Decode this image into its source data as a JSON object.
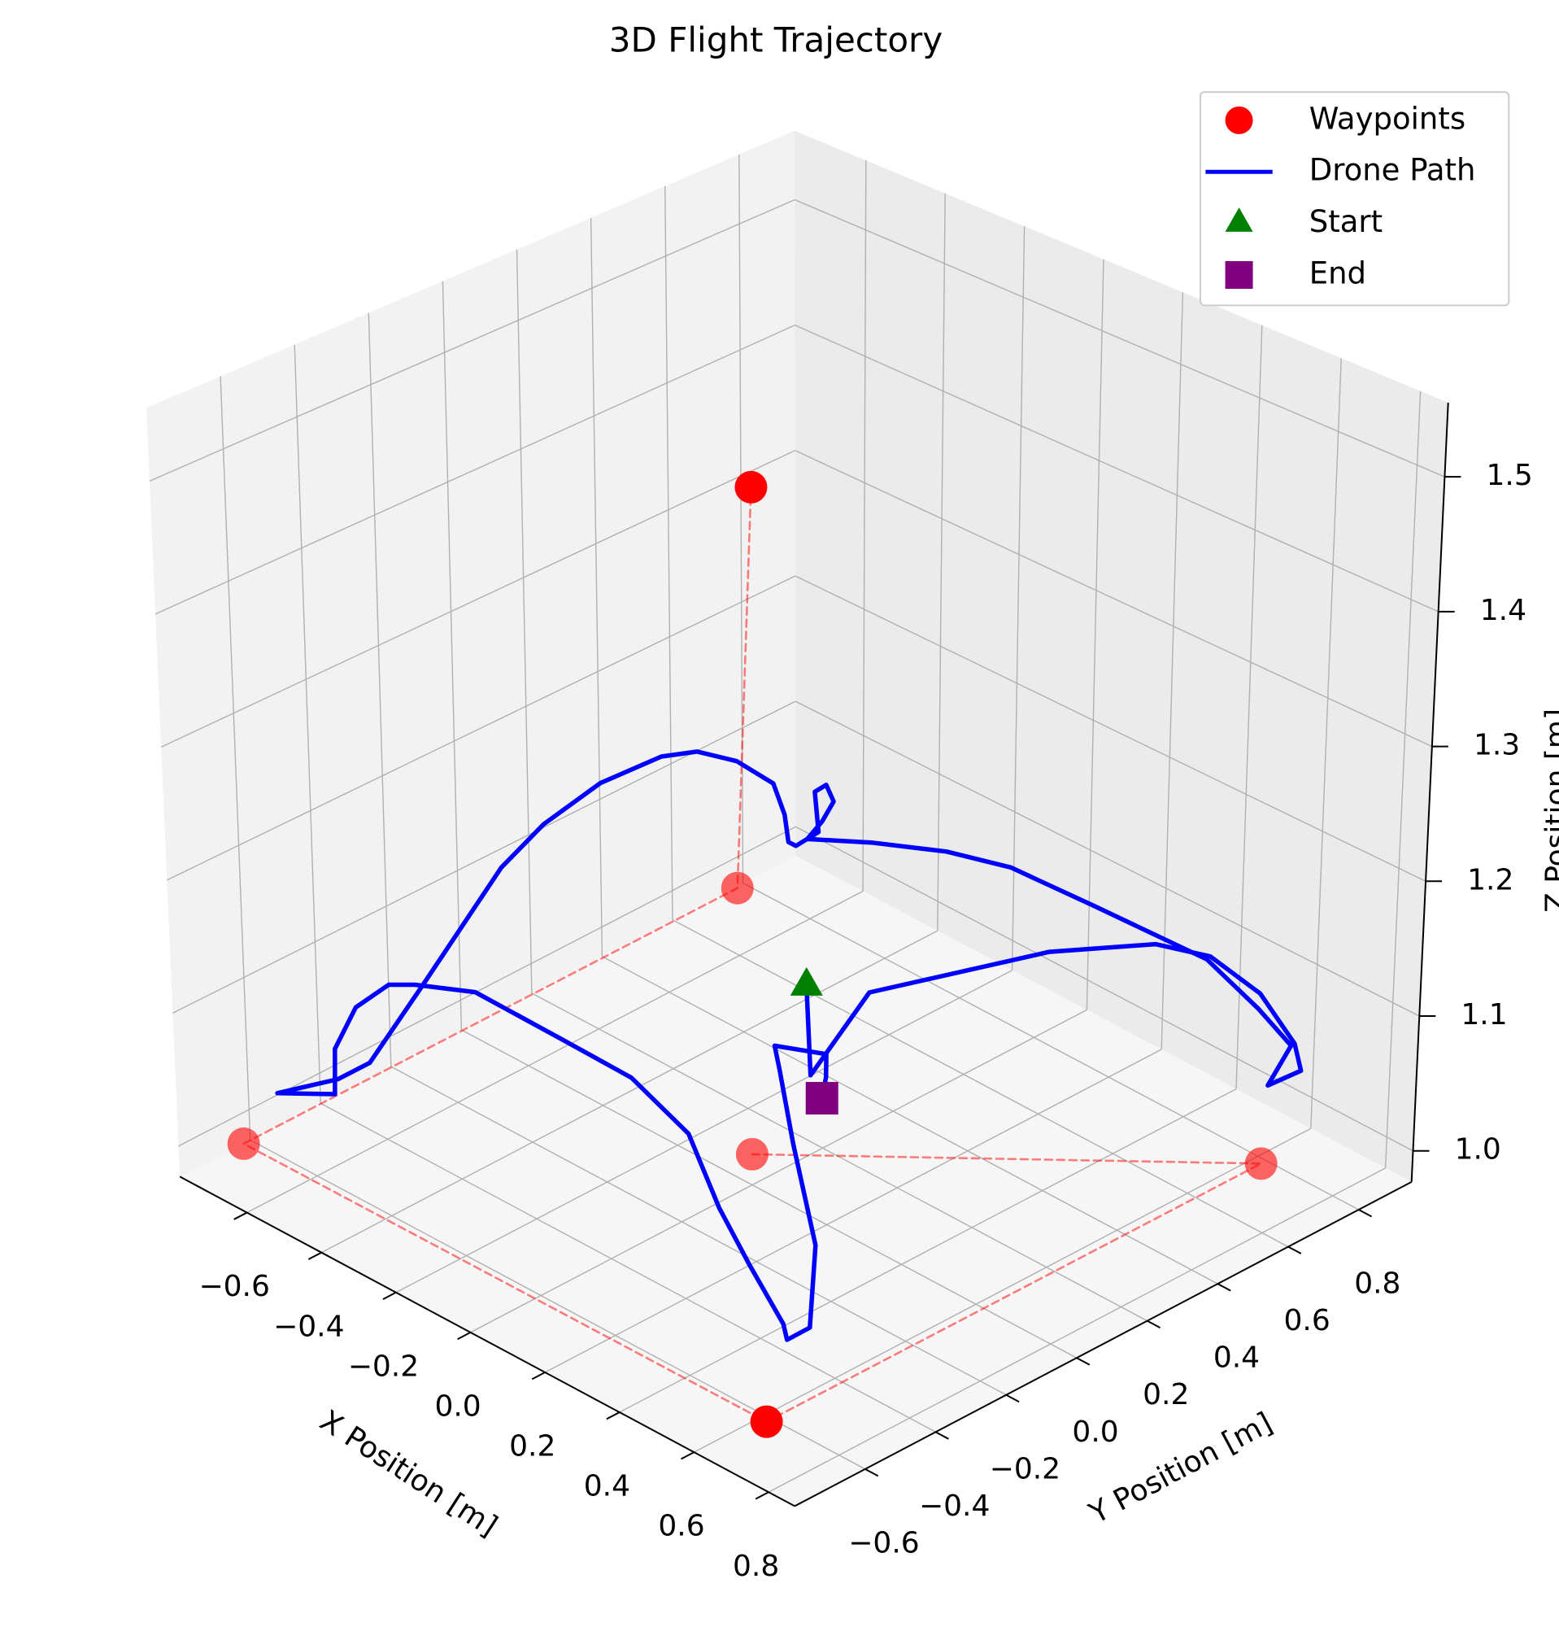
{
  "chart_data": {
    "type": "3d",
    "title": "3D Flight Trajectory",
    "xlabel": "X Position [m]",
    "ylabel": "Y Position [m]",
    "zlabel": "Z Position [m]",
    "xlim": [
      -0.78,
      0.87
    ],
    "ylim": [
      -0.8,
      0.95
    ],
    "zlim": [
      0.977,
      1.555
    ],
    "xticks": [
      {
        "value": -0.6,
        "label": "−0.6"
      },
      {
        "value": -0.4,
        "label": "−0.4"
      },
      {
        "value": -0.2,
        "label": "−0.2"
      },
      {
        "value": 0,
        "label": "0.0"
      },
      0.2,
      0.4,
      0.6,
      0.8
    ],
    "yticks": [
      {
        "value": -0.6,
        "label": "−0.6"
      },
      {
        "value": -0.4,
        "label": "−0.4"
      },
      {
        "value": -0.2,
        "label": "−0.2"
      },
      {
        "value": 0,
        "label": "0.0"
      },
      0.2,
      0.4,
      0.6,
      0.8
    ],
    "zticks": [
      {
        "value": 1.0,
        "label": "1.0"
      },
      1.1,
      1.2,
      1.3,
      1.4,
      1.5
    ],
    "grid": true,
    "legend": "upper right",
    "series": [
      {
        "name": "Waypoints",
        "kind": "scatter",
        "marker": "circle",
        "color": "red",
        "connect": "dashed",
        "x": [
          0,
          0.7,
          0.7,
          -0.7,
          -0.7,
          0
        ],
        "y": [
          0,
          0.7,
          -0.7,
          -0.7,
          0.7,
          0
        ],
        "z": [
          1.0,
          1.0,
          1.0,
          1.0,
          1.0,
          1.5
        ]
      },
      {
        "name": "Drone Path",
        "kind": "line",
        "color": "blue",
        "x": [
          0.05,
          0.08,
          0.15,
          0.35,
          0.47,
          0.54,
          0.6,
          0.64,
          0.65,
          0.61,
          0.64,
          0.57,
          0.44,
          0.15,
          -0.06,
          -0.22,
          -0.41,
          -0.57,
          -0.53,
          -0.5,
          -0.52,
          -0.55,
          -0.54,
          -0.6,
          -0.62,
          -0.63,
          -0.66,
          -0.7,
          -0.71,
          -0.71,
          -0.72,
          -0.72,
          -0.73,
          -0.73,
          -0.74,
          -0.74,
          -0.75,
          -0.74,
          -0.58,
          -0.52,
          -0.43,
          -0.36,
          -0.19,
          0.04,
          0.24,
          0.39,
          0.48,
          0.56,
          0.65,
          0.66,
          0.73,
          0.49,
          0.27,
          0.13,
          0.06,
          0.15,
          0.14,
          0.12
        ],
        "y": [
          0.1,
          0.08,
          0.17,
          0.46,
          0.63,
          0.71,
          0.79,
          0.85,
          0.86,
          0.81,
          0.84,
          0.82,
          0.81,
          0.8,
          0.79,
          0.78,
          0.77,
          0.76,
          0.76,
          0.76,
          0.76,
          0.76,
          0.76,
          0.76,
          0.76,
          0.76,
          0.76,
          0.7,
          0.6,
          0.5,
          0.34,
          0.18,
          0.07,
          -0.16,
          -0.3,
          -0.39,
          -0.55,
          -0.4,
          -0.56,
          -0.56,
          -0.56,
          -0.56,
          -0.57,
          -0.58,
          -0.59,
          -0.59,
          -0.6,
          -0.6,
          -0.6,
          -0.6,
          -0.61,
          -0.34,
          -0.17,
          -0.06,
          0.0,
          0.05,
          0.06,
          0.07
        ],
        "z": [
          1.12,
          1.06,
          1.12,
          1.14,
          1.14,
          1.13,
          1.1,
          1.06,
          1.04,
          1.03,
          1.06,
          1.08,
          1.1,
          1.1,
          1.1,
          1.09,
          1.07,
          1.05,
          1.07,
          1.09,
          1.1,
          1.09,
          1.06,
          1.04,
          1.04,
          1.06,
          1.08,
          1.1,
          1.12,
          1.13,
          1.13,
          1.12,
          1.1,
          1.04,
          1.0,
          1.0,
          1.01,
          0.99,
          1.07,
          1.11,
          1.14,
          1.15,
          1.17,
          1.17,
          1.17,
          1.15,
          1.11,
          1.08,
          1.05,
          1.04,
          1.06,
          1.05,
          1.07,
          1.09,
          1.09,
          1.09,
          1.07,
          1.05
        ]
      },
      {
        "name": "Start",
        "kind": "scatter",
        "marker": "triangle",
        "color": "green",
        "x": [
          0.05
        ],
        "y": [
          0.1
        ],
        "z": [
          1.12
        ]
      },
      {
        "name": "End",
        "kind": "scatter",
        "marker": "square",
        "color": "purple",
        "x": [
          0.12
        ],
        "y": [
          0.07
        ],
        "z": [
          1.05
        ]
      }
    ]
  }
}
